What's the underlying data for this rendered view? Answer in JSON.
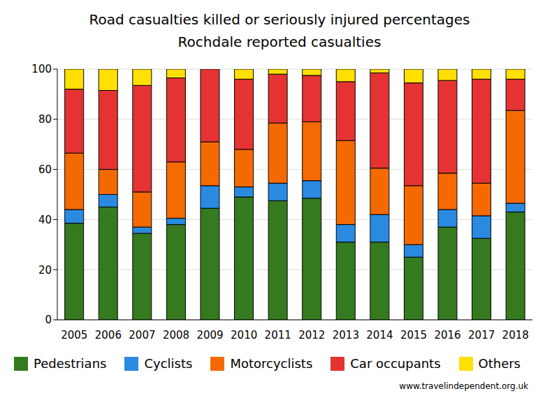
{
  "chart_data": {
    "type": "bar",
    "stacked": true,
    "grid": true,
    "title": "Road casualties killed or seriously injured percentages",
    "subtitle": "Rochdale reported casualties",
    "source": "www.travelindependent.org.uk",
    "categories": [
      "2005",
      "2006",
      "2007",
      "2008",
      "2009",
      "2010",
      "2011",
      "2012",
      "2013",
      "2014",
      "2015",
      "2016",
      "2017",
      "2018"
    ],
    "ylim": [
      0,
      100
    ],
    "yticks": [
      0,
      20,
      40,
      60,
      80,
      100
    ],
    "legend": "bottom",
    "series": [
      {
        "name": "Pedestrians",
        "color": "#357a1f",
        "values": [
          38.5,
          45,
          34.5,
          38,
          44.5,
          49,
          47.5,
          48.5,
          31,
          31,
          25,
          37,
          32.5,
          43
        ]
      },
      {
        "name": "Cyclists",
        "color": "#2a8ae0",
        "values": [
          5.5,
          5,
          2.5,
          2.5,
          9,
          4,
          7,
          7,
          7,
          11,
          5,
          7,
          9,
          3.5
        ]
      },
      {
        "name": "Motorcyclists",
        "color": "#f56a00",
        "values": [
          22.5,
          10,
          14,
          22.5,
          17.5,
          15,
          24,
          23.5,
          33.5,
          18.5,
          23.5,
          14.5,
          13,
          37
        ]
      },
      {
        "name": "Car occupants",
        "color": "#e53333",
        "values": [
          25.5,
          31.5,
          42.5,
          33.5,
          29,
          28,
          19.5,
          18.5,
          23.5,
          38,
          41,
          37,
          41.5,
          12.5
        ]
      },
      {
        "name": "Others",
        "color": "#ffe000",
        "values": [
          8,
          8.5,
          6.5,
          3.5,
          0,
          4,
          2,
          2.5,
          5,
          1.5,
          5.5,
          4.5,
          4,
          4
        ]
      }
    ]
  }
}
